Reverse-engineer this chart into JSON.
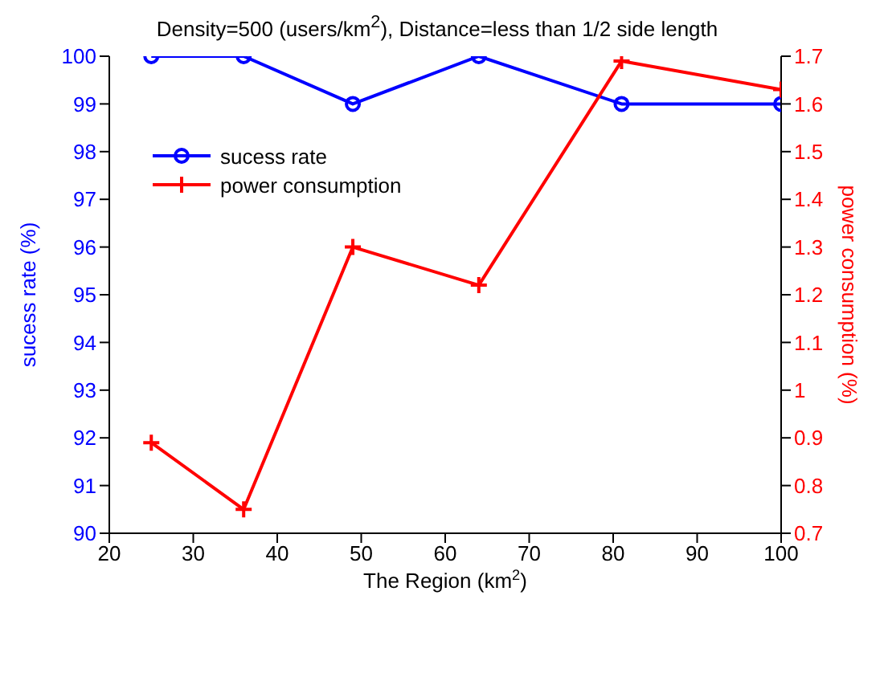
{
  "chart_data": {
    "type": "line",
    "title": "Density=500 (users/km$^{2}$), Distance=less than 1/2 side length",
    "xlabel": "The Region (km$^{2}$)",
    "ylabel": "sucess rate (%)",
    "y2label": "power consumption (%)",
    "x": [
      25,
      36,
      49,
      64,
      81,
      100
    ],
    "series": [
      {
        "name": "sucess rate",
        "color": "#0000ff",
        "values": [
          100,
          100,
          99,
          100,
          99,
          99
        ],
        "marker": "circle"
      },
      {
        "name": "power consumption",
        "color": "#ff0000",
        "values": [
          0.89,
          0.75,
          1.3,
          1.22,
          1.69,
          1.63
        ],
        "marker": "cross",
        "axis": "y2"
      }
    ],
    "xlim": [
      20,
      100
    ],
    "xticks": [
      20,
      30,
      40,
      50,
      60,
      70,
      80,
      90,
      100
    ],
    "ylim": [
      90,
      100
    ],
    "yticks": [
      90,
      91,
      92,
      93,
      94,
      95,
      96,
      97,
      98,
      99,
      100
    ],
    "y2lim": [
      0.7,
      1.7
    ],
    "y2ticks": [
      0.7,
      0.8,
      0.9,
      1,
      1.1,
      1.2,
      1.3,
      1.4,
      1.5,
      1.6,
      1.7
    ],
    "legend": "top left",
    "grid": false,
    "line_style": "solid"
  }
}
